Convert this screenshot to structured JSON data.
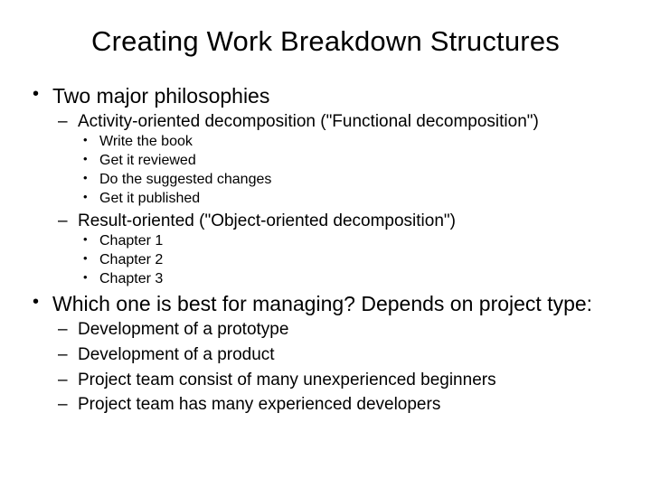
{
  "colors": {
    "background": "#ffffff",
    "text": "#000000"
  },
  "typography": {
    "font_family": "Arial",
    "title_fontsize_pt": 24,
    "l1_fontsize_pt": 18,
    "l2_fontsize_pt": 15,
    "l3_fontsize_pt": 12
  },
  "title": "Creating Work Breakdown Structures",
  "bullets": {
    "l1_0": "Two major philosophies",
    "l1_0_l2_0": "Activity-oriented decomposition  (\"Functional decomposition\")",
    "l1_0_l2_0_l3_0": "Write the book",
    "l1_0_l2_0_l3_1": "Get it reviewed",
    "l1_0_l2_0_l3_2": "Do the suggested changes",
    "l1_0_l2_0_l3_3": "Get it published",
    "l1_0_l2_1": "Result-oriented (\"Object-oriented decomposition\")",
    "l1_0_l2_1_l3_0": "Chapter 1",
    "l1_0_l2_1_l3_1": "Chapter 2",
    "l1_0_l2_1_l3_2": "Chapter 3",
    "l1_1": "Which one is best for managing? Depends on project type:",
    "l1_1_l2_0": "Development of a prototype",
    "l1_1_l2_1": "Development of a product",
    "l1_1_l2_2": "Project team consist of many unexperienced beginners",
    "l1_1_l2_3": "Project team has many experienced developers"
  }
}
